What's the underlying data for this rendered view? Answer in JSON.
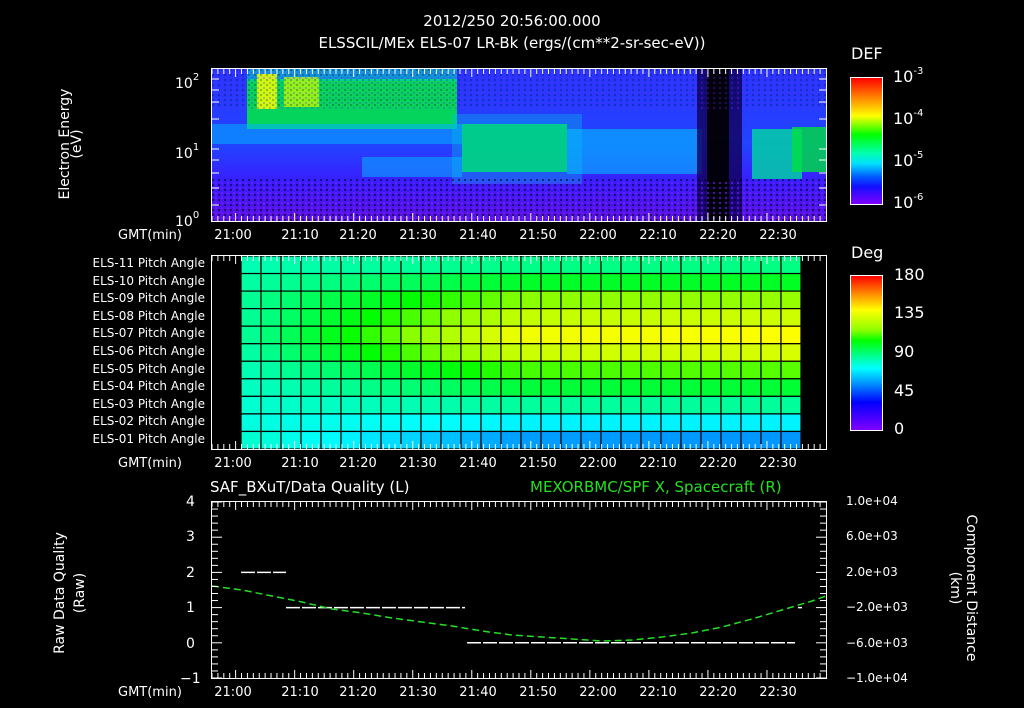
{
  "header": {
    "timestamp": "2012/250 20:56:00.000",
    "subtitle": "ELSSCIL/MEx ELS-07 LR-Bk  (ergs/(cm**2-sr-sec-eV))"
  },
  "panel1": {
    "ylabel": "Electron Energy",
    "yunit": "(eV)",
    "y_ticks": [
      "10",
      "10",
      "10"
    ],
    "y_exps": [
      "2",
      "1",
      "0"
    ],
    "xlabel": "GMT(min)",
    "colorbar": {
      "title": "DEF",
      "labels": [
        "10",
        "10",
        "10",
        "10"
      ],
      "exps": [
        "-3",
        "-4",
        "-5",
        "-6"
      ]
    }
  },
  "panel2": {
    "xlabel": "GMT(min)",
    "rows": [
      "ELS-11 Pitch Angle",
      "ELS-10 Pitch Angle",
      "ELS-09 Pitch Angle",
      "ELS-08 Pitch Angle",
      "ELS-07 Pitch Angle",
      "ELS-06 Pitch Angle",
      "ELS-05 Pitch Angle",
      "ELS-04 Pitch Angle",
      "ELS-03 Pitch Angle",
      "ELS-02 Pitch Angle",
      "ELS-01 Pitch Angle"
    ],
    "colorbar": {
      "title": "Deg",
      "labels": [
        "180",
        "135",
        "90",
        "45",
        "0"
      ]
    }
  },
  "panel3": {
    "left_title": "SAF_BXuT/Data Quality (L)",
    "right_title": "MEXORBMC/SPF X, Spacecraft (R)",
    "right_title_color": "#22e022",
    "ylabel_left": "Raw Data Quality",
    "yunit_left": "(Raw)",
    "ylabel_right": "Component Distance",
    "yunit_right": "(km)",
    "left_ticks": [
      "4",
      "3",
      "2",
      "1",
      "0",
      "−1"
    ],
    "right_ticks": [
      "1.0e+04",
      "6.0e+03",
      "2.0e+03",
      "−2.0e+03",
      "−6.0e+03",
      "−1.0e+04"
    ],
    "xlabel": "GMT(min)"
  },
  "x_ticks": [
    "21:00",
    "21:10",
    "21:20",
    "21:30",
    "21:40",
    "21:50",
    "22:00",
    "22:10",
    "22:20",
    "22:30"
  ],
  "chart_data": [
    {
      "type": "heatmap",
      "title": "ELSSCIL/MEx ELS-07 LR-Bk (ergs/(cm**2-sr-sec-eV))",
      "xlabel": "GMT(min)",
      "ylabel": "Electron Energy (eV)",
      "yscale": "log",
      "ylim": [
        1,
        150
      ],
      "xlim": [
        "20:56",
        "22:40"
      ],
      "colorbar": {
        "label": "DEF",
        "scale": "log",
        "range": [
          1e-06,
          0.001
        ]
      },
      "features": [
        {
          "time": "21:00-21:35",
          "energy_eV": "30-100",
          "level": "~1e-4 (green/yellow)"
        },
        {
          "time": "21:35-21:55",
          "energy_eV": "5-15",
          "level": "~5e-5 (green)"
        },
        {
          "time": "22:10-22:16",
          "energy_eV": "all",
          "level": "low (dropout)"
        },
        {
          "time": "22:24-22:38",
          "energy_eV": "5-15",
          "level": "~3e-5 (green)"
        }
      ]
    },
    {
      "type": "heatmap",
      "title": "Pitch Angle",
      "xlabel": "GMT(min)",
      "categories": [
        "ELS-01",
        "ELS-02",
        "ELS-03",
        "ELS-04",
        "ELS-05",
        "ELS-06",
        "ELS-07",
        "ELS-08",
        "ELS-09",
        "ELS-10",
        "ELS-11"
      ],
      "colorbar": {
        "label": "Deg",
        "range": [
          0,
          180
        ]
      },
      "values_start_deg": [
        78,
        76,
        78,
        80,
        82,
        84,
        86,
        86,
        86,
        84,
        82
      ],
      "values_end_deg": [
        55,
        70,
        85,
        98,
        112,
        132,
        140,
        130,
        118,
        100,
        88
      ]
    },
    {
      "type": "line",
      "title": "SAF_BXuT/Data Quality (L) / MEXORBMC/SPF X, Spacecraft (R)",
      "xlabel": "GMT(min)",
      "ylabel_left": "Raw Data Quality (Raw)",
      "ylabel_right": "Component Distance (km)",
      "ylim_left": [
        -1,
        4
      ],
      "ylim_right": [
        -10000,
        10000
      ],
      "series": [
        {
          "name": "Data Quality",
          "axis": "left",
          "color": "#ffffff",
          "segments": [
            {
              "x": [
                "21:00",
                "21:10"
              ],
              "y": 2
            },
            {
              "x": [
                "21:10",
                "21:38"
              ],
              "y": 1
            },
            {
              "x": [
                "21:38",
                "22:33"
              ],
              "y": 0
            },
            {
              "x": [
                "22:33",
                "22:34"
              ],
              "y": 1
            }
          ]
        },
        {
          "name": "SPF X",
          "axis": "right",
          "color": "#22e022",
          "x": [
            "20:56",
            "21:10",
            "21:20",
            "21:30",
            "21:40",
            "21:50",
            "22:00",
            "22:10",
            "22:20",
            "22:30",
            "22:40"
          ],
          "y": [
            200,
            -1200,
            -2700,
            -3900,
            -5200,
            -6000,
            -6200,
            -5500,
            -3500,
            -1000,
            1600
          ]
        }
      ]
    }
  ]
}
